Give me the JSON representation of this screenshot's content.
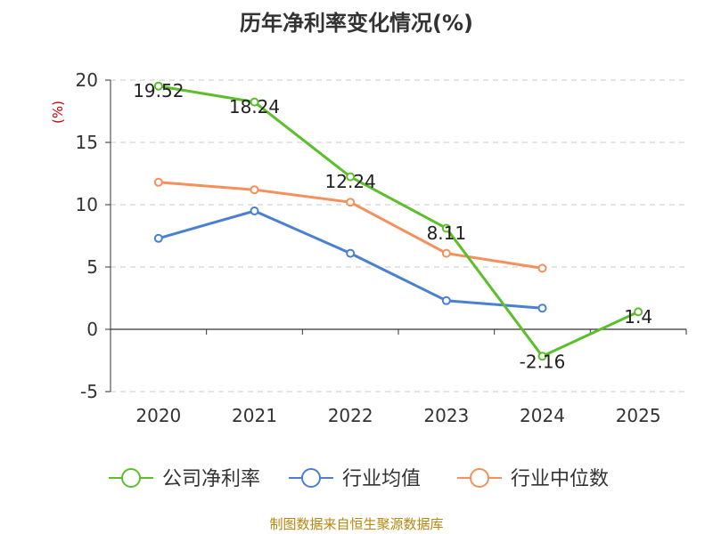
{
  "title": "历年净利率变化情况(%)",
  "source": "制图数据来自恒生聚源数据库",
  "chart_data": {
    "type": "line",
    "title": "历年净利率变化情况(%)",
    "ylabel": "(%)",
    "xlabel": "",
    "categories": [
      "2020",
      "2021",
      "2022",
      "2023",
      "2024",
      "2025"
    ],
    "ylim": [
      -5,
      20
    ],
    "yticks": [
      20,
      15,
      10,
      5,
      0,
      -5
    ],
    "grid": true,
    "legend_position": "bottom",
    "series": [
      {
        "name": "公司净利率",
        "color": "#5cbf2a",
        "values": [
          19.52,
          18.24,
          12.24,
          8.11,
          -2.16,
          1.4
        ],
        "labels": [
          "19.52",
          "18.24",
          "12.24",
          "8.11",
          "-2.16",
          "1.4"
        ]
      },
      {
        "name": "行业均值",
        "color": "#4a7fd6",
        "values": [
          7.3,
          9.5,
          6.1,
          2.3,
          1.7,
          null
        ],
        "labels": null
      },
      {
        "name": "行业中位数",
        "color": "#f5905a",
        "values": [
          11.8,
          11.2,
          10.2,
          6.1,
          4.9,
          null
        ],
        "labels": null
      }
    ]
  }
}
